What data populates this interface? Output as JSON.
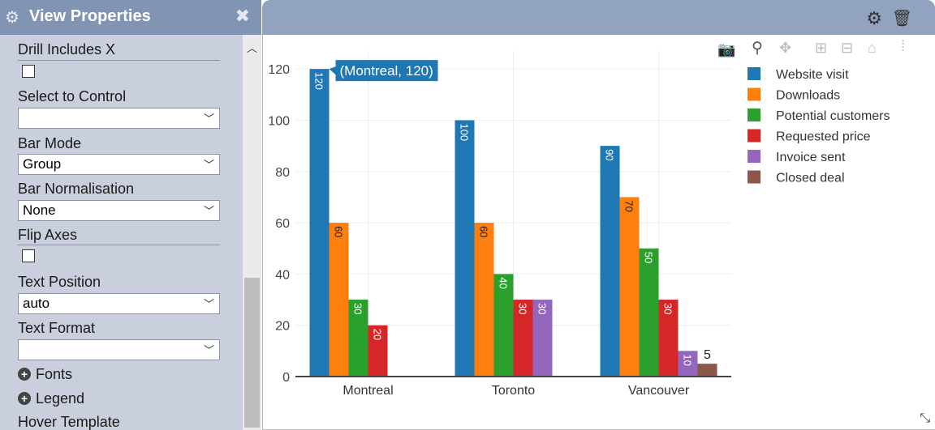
{
  "sidebar": {
    "title": "View Properties",
    "labels": {
      "drill": "Drill Includes X",
      "select_control": "Select to Control",
      "bar_mode": "Bar Mode",
      "bar_norm": "Bar Normalisation",
      "flip_axes": "Flip Axes",
      "text_position": "Text Position",
      "text_format": "Text Format",
      "fonts": "Fonts",
      "legend": "Legend",
      "hover_template": "Hover Template"
    },
    "values": {
      "select_control": "",
      "bar_mode": "Group",
      "bar_norm": "None",
      "text_position": "auto",
      "text_format": ""
    },
    "checks": {
      "drill": false,
      "flip_axes": false
    },
    "icons": {
      "gear": "gear-icon",
      "close": "close-icon",
      "chevron": "chevron-down-icon",
      "plus": "plus-circle-icon"
    }
  },
  "toolbar": {
    "icons": [
      "gear-icon",
      "trash-icon"
    ]
  },
  "modebar": {
    "icons": [
      "camera-icon",
      "zoom-icon",
      "pan-icon",
      "zoom-in-icon",
      "zoom-out-icon",
      "home-icon",
      "spike-icon"
    ]
  },
  "tooltip": "(Montreal, 120)",
  "chart_data": {
    "type": "bar",
    "categories": [
      "Montreal",
      "Toronto",
      "Vancouver"
    ],
    "series": [
      {
        "name": "Website visit",
        "color": "#1f77b4",
        "values": [
          120,
          100,
          90
        ]
      },
      {
        "name": "Downloads",
        "color": "#ff7f0e",
        "values": [
          60,
          60,
          70
        ]
      },
      {
        "name": "Potential customers",
        "color": "#2ca02c",
        "values": [
          30,
          40,
          50
        ]
      },
      {
        "name": "Requested price",
        "color": "#d62728",
        "values": [
          20,
          30,
          30
        ]
      },
      {
        "name": "Invoice sent",
        "color": "#9467bd",
        "values": [
          null,
          30,
          10
        ]
      },
      {
        "name": "Closed deal",
        "color": "#8c564b",
        "values": [
          null,
          null,
          5
        ]
      }
    ],
    "ylim": [
      0,
      127
    ],
    "yticks": [
      0,
      20,
      40,
      60,
      80,
      100,
      120
    ],
    "grid": true,
    "legend_position": "top-right"
  }
}
